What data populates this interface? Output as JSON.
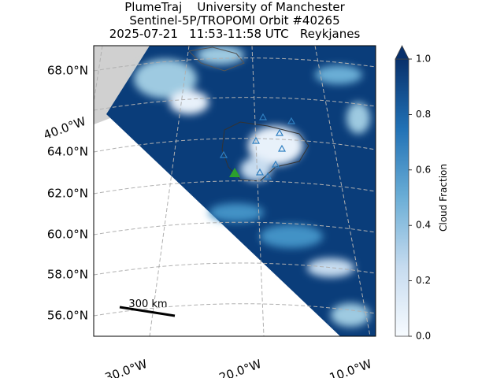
{
  "title": [
    "PlumeTraj    University of Manchester",
    "Sentinel-5P/TROPOMI Orbit #40265",
    "2025-07-21   11:53-11:58 UTC   Reykjanes"
  ],
  "map": {
    "lat_labels": [
      "68.0°N",
      "64.0°N",
      "62.0°N",
      "60.0°N",
      "58.0°N",
      "56.0°N"
    ],
    "lon_labels": [
      "40.0°W",
      "30.0°W",
      "20.0°W",
      "10.0°W"
    ],
    "scale_bar": "300 km"
  },
  "colorbar": {
    "label": "Cloud Fraction",
    "lim": [
      0,
      1
    ],
    "ticks": [
      {
        "value": 0,
        "label": "0.0"
      },
      {
        "value": 0.2,
        "label": "0.2"
      },
      {
        "value": 0.4,
        "label": "0.4"
      },
      {
        "value": 0.6,
        "label": "0.6"
      },
      {
        "value": 0.8,
        "label": "0.8"
      },
      {
        "value": 1,
        "label": "1.0"
      }
    ]
  }
}
